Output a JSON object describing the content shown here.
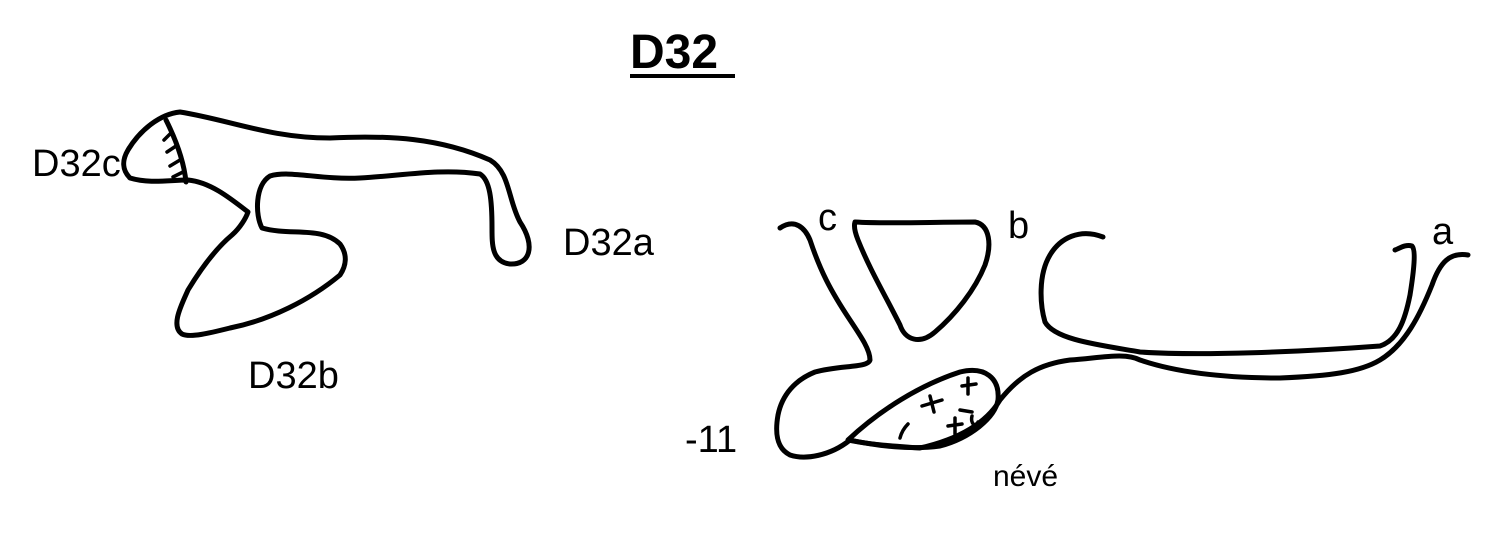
{
  "title": "D32",
  "plan_view": {
    "labels": {
      "entrance_c": "D32c",
      "entrance_a": "D32a",
      "entrance_b": "D32b"
    }
  },
  "section_view": {
    "labels": {
      "c": "c",
      "b": "b",
      "a": "a",
      "depth": "-11",
      "snow": "névé"
    }
  },
  "colors": {
    "ink": "#000000",
    "background": "#ffffff"
  }
}
